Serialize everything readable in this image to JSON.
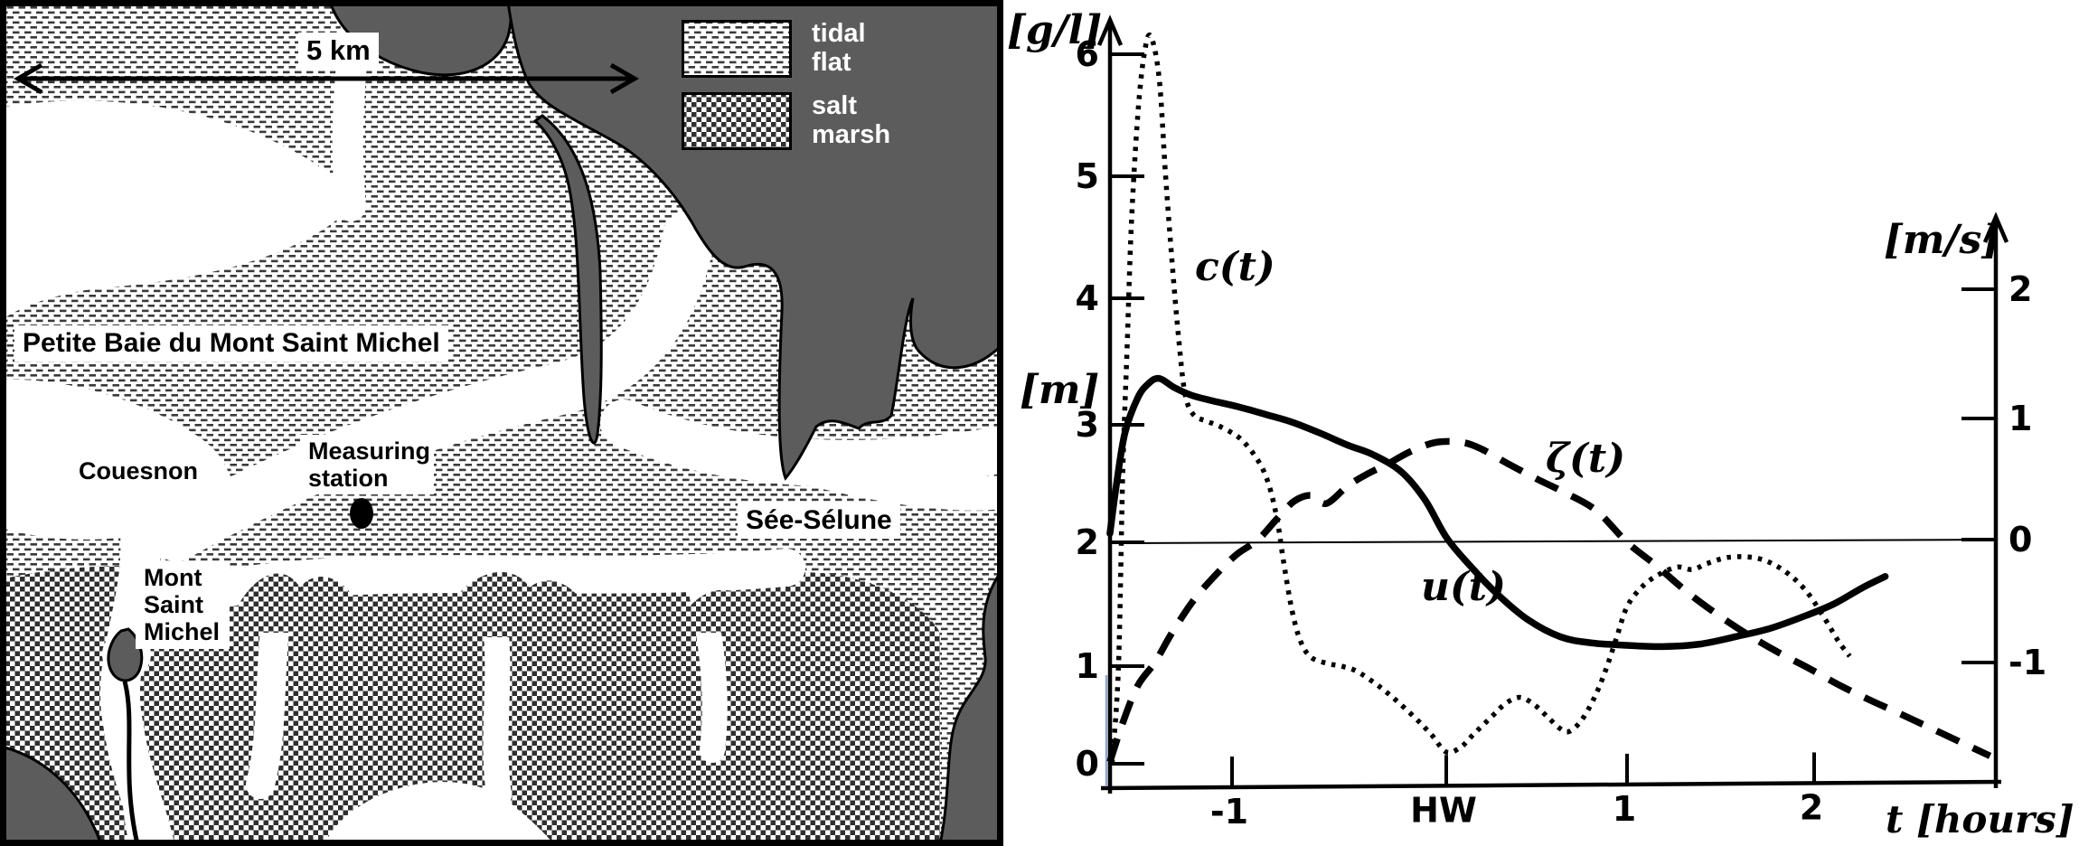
{
  "map": {
    "scale_label": "5 km",
    "legend": {
      "tidal_flat": "tidal flat",
      "salt_marsh": "salt marsh"
    },
    "labels": {
      "bay": "Petite Baie du Mont Saint Michel",
      "river_west": "Couesnon",
      "station_line1": "Measuring",
      "station_line2": "station",
      "mont_line1": "Mont",
      "mont_line2": "Saint",
      "mont_line3": "Michel",
      "rivers_east": "Sée-Sélune"
    },
    "colors": {
      "land": "#5c5c5c",
      "pattern_ink": "#3a3a3a",
      "marsh_ink": "#2f2f2f",
      "frame": "#000000",
      "background": "#ffffff"
    }
  },
  "chart_data": {
    "type": "line",
    "title": "",
    "xlabel": "t [hours]",
    "x_ticks": [
      {
        "t": -1,
        "label": "-1"
      },
      {
        "t": 0,
        "label": "HW"
      },
      {
        "t": 1,
        "label": "1"
      },
      {
        "t": 2,
        "label": "2"
      }
    ],
    "axes": {
      "left": {
        "unit": "[g/l]",
        "secondary_unit": "[m]",
        "ticks": [
          0,
          1,
          2,
          3,
          4,
          5,
          6
        ],
        "range": [
          0,
          6.5
        ]
      },
      "right": {
        "unit": "[m/s]",
        "ticks": [
          2,
          1,
          0,
          -1
        ],
        "range": [
          -1.3,
          2.6
        ]
      }
    },
    "grid": false,
    "legend_position": "inline-curve-labels",
    "series": [
      {
        "name": "c(t)",
        "axis": "left",
        "unit": "g/l",
        "style": "dotted",
        "points": [
          [
            -1.56,
            0
          ],
          [
            -1.53,
            1.0
          ],
          [
            -1.51,
            2.6
          ],
          [
            -1.49,
            3.6
          ],
          [
            -1.47,
            4.6
          ],
          [
            -1.44,
            5.5
          ],
          [
            -1.41,
            6.0
          ],
          [
            -1.38,
            6.15
          ],
          [
            -1.34,
            5.8
          ],
          [
            -1.31,
            5.0
          ],
          [
            -1.28,
            4.3
          ],
          [
            -1.25,
            3.7
          ],
          [
            -1.22,
            3.25
          ],
          [
            -1.18,
            3.08
          ],
          [
            -1.12,
            3.03
          ],
          [
            -1.05,
            2.98
          ],
          [
            -0.96,
            2.88
          ],
          [
            -0.88,
            2.7
          ],
          [
            -0.83,
            2.5
          ],
          [
            -0.79,
            2.2
          ],
          [
            -0.76,
            1.85
          ],
          [
            -0.72,
            1.45
          ],
          [
            -0.68,
            1.2
          ],
          [
            -0.63,
            1.07
          ],
          [
            -0.55,
            1.02
          ],
          [
            -0.49,
            1.0
          ],
          [
            -0.42,
            0.95
          ],
          [
            -0.33,
            0.82
          ],
          [
            -0.25,
            0.68
          ],
          [
            -0.15,
            0.48
          ],
          [
            -0.07,
            0.3
          ],
          [
            0,
            0.12
          ],
          [
            0.08,
            0.17
          ],
          [
            0.15,
            0.3
          ],
          [
            0.25,
            0.48
          ],
          [
            0.33,
            0.62
          ],
          [
            0.41,
            0.68
          ],
          [
            0.49,
            0.6
          ],
          [
            0.56,
            0.48
          ],
          [
            0.63,
            0.36
          ],
          [
            0.68,
            0.33
          ],
          [
            0.75,
            0.45
          ],
          [
            0.82,
            0.68
          ],
          [
            0.88,
            0.95
          ],
          [
            0.94,
            1.22
          ],
          [
            1.0,
            1.48
          ],
          [
            1.08,
            1.64
          ],
          [
            1.17,
            1.74
          ],
          [
            1.27,
            1.8
          ],
          [
            1.35,
            1.78
          ],
          [
            1.43,
            1.83
          ],
          [
            1.55,
            1.88
          ],
          [
            1.7,
            1.87
          ],
          [
            1.83,
            1.78
          ],
          [
            1.95,
            1.62
          ],
          [
            2.05,
            1.4
          ],
          [
            2.13,
            1.2
          ],
          [
            2.19,
            1.08
          ]
        ]
      },
      {
        "name": "ζ(t)",
        "axis": "left",
        "unit": "m",
        "style": "dashed",
        "points": [
          [
            -1.57,
            0.02
          ],
          [
            -1.51,
            0.42
          ],
          [
            -1.44,
            0.8
          ],
          [
            -1.36,
            1.03
          ],
          [
            -1.28,
            1.27
          ],
          [
            -1.18,
            1.53
          ],
          [
            -1.08,
            1.73
          ],
          [
            -0.98,
            1.9
          ],
          [
            -0.88,
            2.02
          ],
          [
            -0.79,
            2.2
          ],
          [
            -0.71,
            2.35
          ],
          [
            -0.63,
            2.4
          ],
          [
            -0.56,
            2.33
          ],
          [
            -0.46,
            2.48
          ],
          [
            -0.37,
            2.58
          ],
          [
            -0.27,
            2.67
          ],
          [
            -0.17,
            2.77
          ],
          [
            -0.05,
            2.85
          ],
          [
            0.09,
            2.85
          ],
          [
            0.2,
            2.79
          ],
          [
            0.34,
            2.67
          ],
          [
            0.5,
            2.54
          ],
          [
            0.66,
            2.42
          ],
          [
            0.83,
            2.27
          ],
          [
            1.0,
            2.0
          ],
          [
            1.15,
            1.82
          ],
          [
            1.32,
            1.6
          ],
          [
            1.48,
            1.42
          ],
          [
            1.64,
            1.26
          ],
          [
            1.81,
            1.11
          ],
          [
            1.97,
            0.98
          ],
          [
            2.14,
            0.8
          ],
          [
            2.29,
            0.66
          ],
          [
            2.45,
            0.52
          ],
          [
            2.64,
            0.35
          ],
          [
            2.84,
            0.17
          ],
          [
            2.94,
            0.08
          ]
        ]
      },
      {
        "name": "u(t)",
        "axis": "right",
        "unit": "m/s",
        "style": "solid",
        "points": [
          [
            -1.57,
            0.05
          ],
          [
            -1.54,
            0.45
          ],
          [
            -1.5,
            0.88
          ],
          [
            -1.44,
            1.16
          ],
          [
            -1.39,
            1.27
          ],
          [
            -1.34,
            1.31
          ],
          [
            -1.27,
            1.24
          ],
          [
            -1.19,
            1.18
          ],
          [
            -1.1,
            1.14
          ],
          [
            -0.97,
            1.09
          ],
          [
            -0.84,
            1.03
          ],
          [
            -0.72,
            0.97
          ],
          [
            -0.59,
            0.88
          ],
          [
            -0.46,
            0.78
          ],
          [
            -0.34,
            0.7
          ],
          [
            -0.21,
            0.56
          ],
          [
            -0.1,
            0.33
          ],
          [
            0,
            0.02
          ],
          [
            0.13,
            -0.21
          ],
          [
            0.28,
            -0.44
          ],
          [
            0.45,
            -0.65
          ],
          [
            0.63,
            -0.79
          ],
          [
            0.8,
            -0.84
          ],
          [
            1.0,
            -0.86
          ],
          [
            1.19,
            -0.87
          ],
          [
            1.39,
            -0.85
          ],
          [
            1.58,
            -0.79
          ],
          [
            1.77,
            -0.72
          ],
          [
            1.97,
            -0.61
          ],
          [
            2.11,
            -0.52
          ],
          [
            2.26,
            -0.39
          ],
          [
            2.38,
            -0.3
          ]
        ]
      }
    ]
  }
}
